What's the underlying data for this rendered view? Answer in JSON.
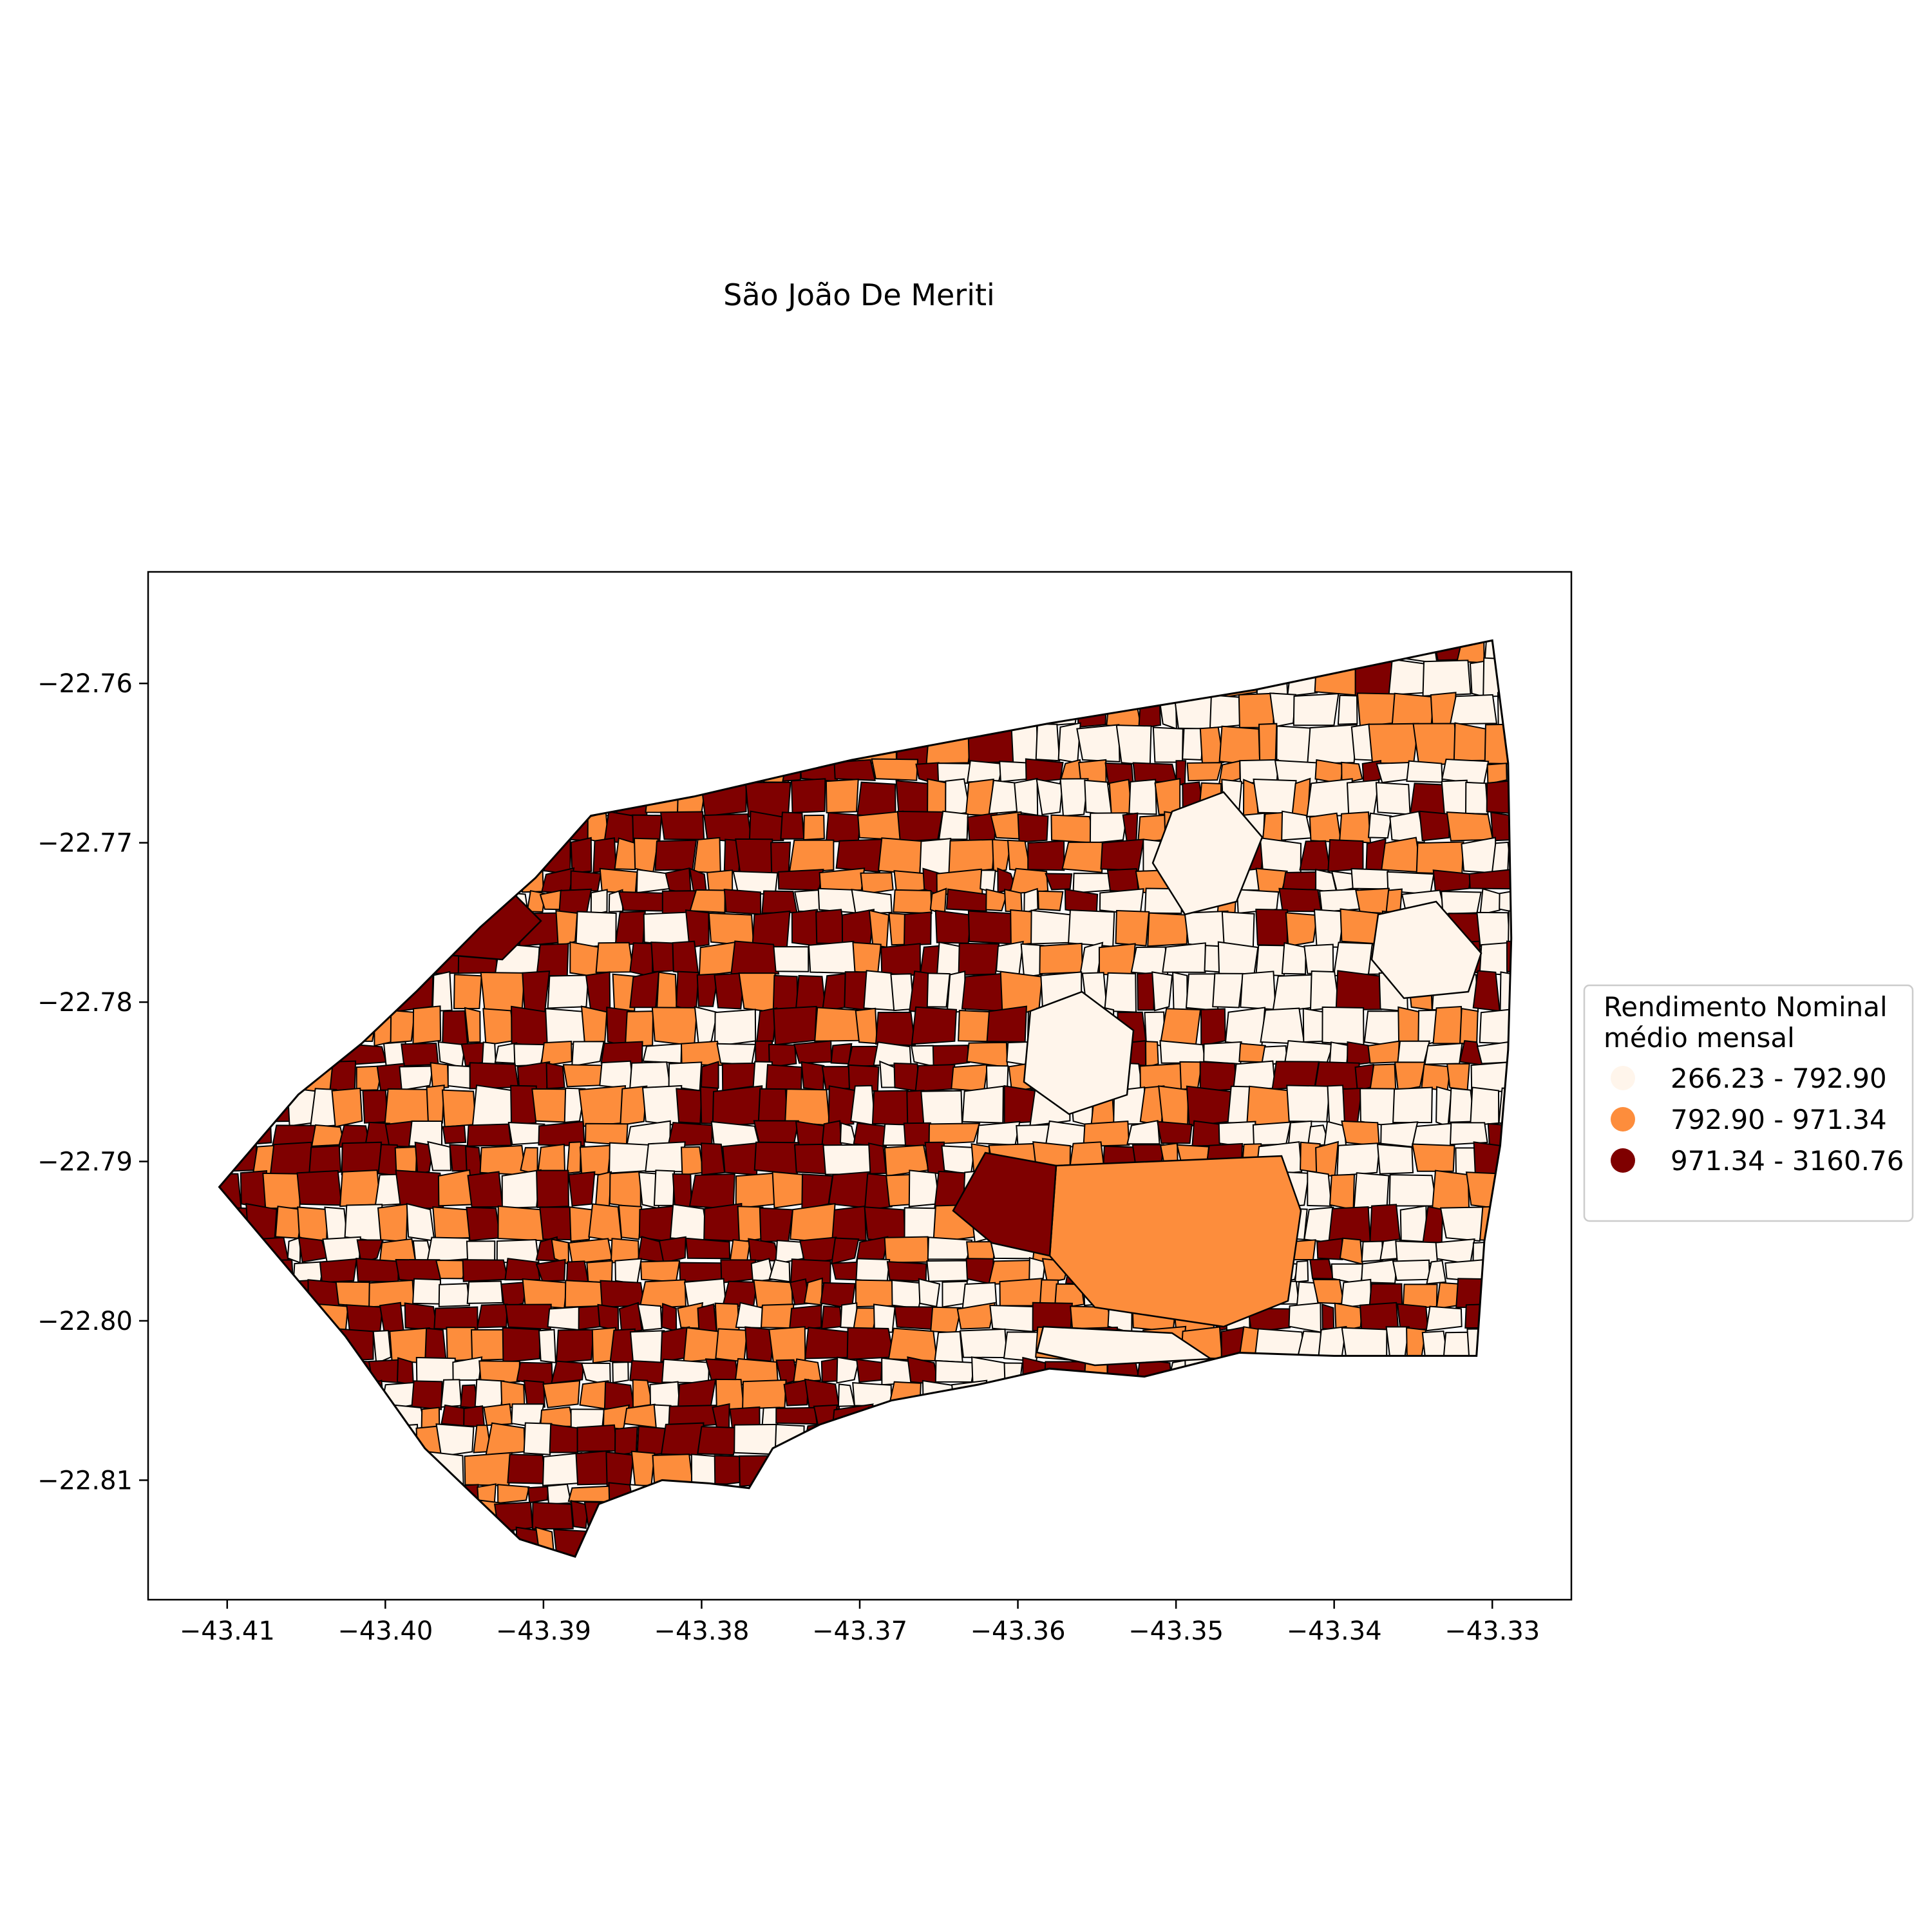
{
  "title": "São João De Meriti",
  "colors": {
    "class_low": "#fff5eb",
    "class_mid": "#fd8d3c",
    "class_high": "#7f0000",
    "edge": "#000000"
  },
  "chart_data": {
    "type": "choropleth-map",
    "title": "São João De Meriti",
    "xlabel": "",
    "ylabel": "",
    "xlim": [
      -43.415,
      -43.325
    ],
    "ylim": [
      -22.8175,
      -22.753
    ],
    "grid": false,
    "x_ticks": [
      "−43.41",
      "−43.40",
      "−43.39",
      "−43.38",
      "−43.37",
      "−43.36",
      "−43.35",
      "−43.34",
      "−43.33"
    ],
    "x_tick_values": [
      -43.41,
      -43.4,
      -43.39,
      -43.38,
      -43.37,
      -43.36,
      -43.35,
      -43.34,
      -43.33
    ],
    "y_ticks": [
      "−22.76",
      "−22.77",
      "−22.78",
      "−22.79",
      "−22.80",
      "−22.81"
    ],
    "y_tick_values": [
      -22.76,
      -22.77,
      -22.78,
      -22.79,
      -22.8,
      -22.81
    ],
    "legend": {
      "title_line1": "Rendimento Nominal",
      "title_line2": "médio mensal",
      "placement": "center-right-outside",
      "entries": [
        {
          "label": "266.23 - 792.90",
          "color": "#fff5eb"
        },
        {
          "label": "792.90 - 971.34",
          "color": "#fd8d3c"
        },
        {
          "label": "971.34 - 3160.76",
          "color": "#7f0000"
        }
      ]
    },
    "boundary": [
      [
        -43.4105,
        -22.7916
      ],
      [
        -43.4055,
        -22.7858
      ],
      [
        -43.4015,
        -22.7826
      ],
      [
        -43.398,
        -22.7793
      ],
      [
        -43.394,
        -22.7753
      ],
      [
        -43.3905,
        -22.7722
      ],
      [
        -43.387,
        -22.7683
      ],
      [
        -43.3805,
        -22.7671
      ],
      [
        -43.3705,
        -22.7648
      ],
      [
        -43.358,
        -22.7625
      ],
      [
        -43.345,
        -22.7604
      ],
      [
        -43.33,
        -22.7573
      ],
      [
        -43.329,
        -22.765
      ],
      [
        -43.3288,
        -22.776
      ],
      [
        -43.329,
        -22.783
      ],
      [
        -43.3295,
        -22.789
      ],
      [
        -43.3305,
        -22.795
      ],
      [
        -43.331,
        -22.8022
      ],
      [
        -43.34,
        -22.8022
      ],
      [
        -43.346,
        -22.802
      ],
      [
        -43.352,
        -22.8035
      ],
      [
        -43.358,
        -22.803
      ],
      [
        -43.3625,
        -22.804
      ],
      [
        -43.368,
        -22.805
      ],
      [
        -43.3725,
        -22.8065
      ],
      [
        -43.3755,
        -22.808
      ],
      [
        -43.377,
        -22.8105
      ],
      [
        -43.3795,
        -22.8102
      ],
      [
        -43.3825,
        -22.81
      ],
      [
        -43.3865,
        -22.8115
      ],
      [
        -43.388,
        -22.8148
      ],
      [
        -43.3915,
        -22.8137
      ],
      [
        -43.3975,
        -22.808
      ],
      [
        -43.4025,
        -22.801
      ],
      [
        -43.4065,
        -22.7963
      ]
    ]
  }
}
